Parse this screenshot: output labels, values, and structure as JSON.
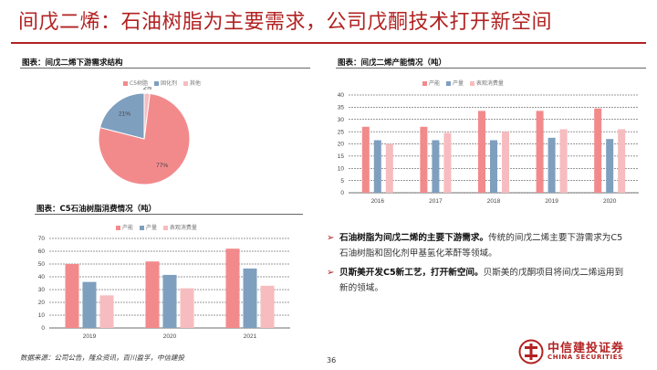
{
  "slide": {
    "title": "间戊二烯：石油树脂为主要需求，公司戊酮技术打开新空间",
    "source": "数据来源：公司公告，隆众资讯，百川盈孚，中信建投",
    "page_number": "36",
    "logo_cn": "中信建投证券",
    "logo_en": "CHINA SECURITIES"
  },
  "colors": {
    "accent": "#b22222",
    "capacity": "#f28a8c",
    "output": "#7f9fbf",
    "demand": "#f7bcbf"
  },
  "captions": {
    "pie": "图表：间戊二烯下游需求结构",
    "capacity": "图表：间戊二烯产能情况（吨）",
    "resin": "图表：C5石油树脂消费情况（吨）"
  },
  "bullets": [
    {
      "lead": "石油树脂为间戊二烯的主要下游需求。",
      "text": "传统的间戊二烯主要下游需求为C5石油树脂和固化剂甲基氢化苯酐等领域。"
    },
    {
      "lead": "贝斯美开发C5新工艺，打开新空间。",
      "text": "贝斯美的戊酮项目将间戊二烯运用到新的领域。"
    }
  ],
  "chart_data": [
    {
      "type": "pie",
      "categories": [
        "C5树脂",
        "固化剂",
        "其他"
      ],
      "values": [
        77,
        21,
        2
      ],
      "labels": [
        "77%",
        "21%",
        "2%"
      ],
      "legend": "top"
    },
    {
      "type": "bar",
      "categories": [
        "2016",
        "2017",
        "2018",
        "2019",
        "2020"
      ],
      "series": [
        {
          "name": "产能",
          "values": [
            27,
            27,
            33.5,
            33.5,
            34.5
          ]
        },
        {
          "name": "产量",
          "values": [
            21.5,
            21.5,
            21.5,
            22.5,
            22
          ]
        },
        {
          "name": "表观消费量",
          "values": [
            20,
            24.5,
            25,
            26,
            26
          ]
        }
      ],
      "y_ticks": [
        "0",
        "5",
        "10",
        "15",
        "20",
        "25",
        "30",
        "35",
        "40"
      ],
      "ylim": [
        0,
        40
      ],
      "legend": "top"
    },
    {
      "type": "bar",
      "categories": [
        "2019",
        "2020",
        "2021"
      ],
      "series": [
        {
          "name": "产能",
          "values": [
            50,
            52,
            62
          ]
        },
        {
          "name": "产量",
          "values": [
            36,
            41.5,
            46.5
          ]
        },
        {
          "name": "表观消费量",
          "values": [
            25.5,
            31,
            33
          ]
        }
      ],
      "y_ticks": [
        "0",
        "10",
        "20",
        "30",
        "40",
        "50",
        "60",
        "70"
      ],
      "ylim": [
        0,
        70
      ],
      "legend": "top"
    }
  ]
}
